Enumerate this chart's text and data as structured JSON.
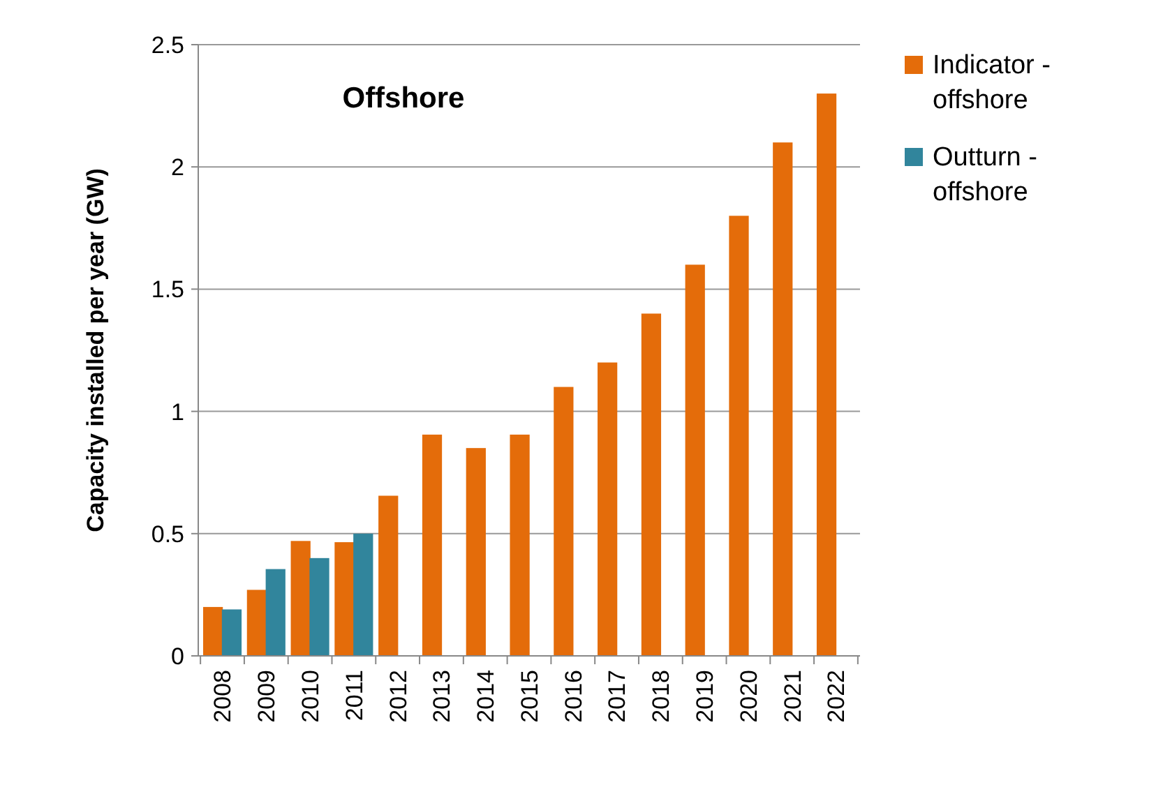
{
  "chart_data": {
    "type": "bar",
    "title": "Offshore",
    "ylabel": "Capacity installed per year (GW)",
    "categories": [
      "2008",
      "2009",
      "2010",
      "2011",
      "2012",
      "2013",
      "2014",
      "2015",
      "2016",
      "2017",
      "2018",
      "2019",
      "2020",
      "2021",
      "2022"
    ],
    "series": [
      {
        "name": "Indicator - offshore",
        "color": "#e46c0a",
        "values": [
          0.2,
          0.27,
          0.47,
          0.465,
          0.655,
          0.905,
          0.85,
          0.905,
          1.1,
          1.2,
          1.4,
          1.6,
          1.8,
          2.1,
          2.3
        ]
      },
      {
        "name": "Outturn - offshore",
        "color": "#31859c",
        "values": [
          0.19,
          0.355,
          0.4,
          0.5,
          null,
          null,
          null,
          null,
          null,
          null,
          null,
          null,
          null,
          null,
          null
        ]
      }
    ],
    "ylim": [
      0,
      2.5
    ],
    "yticks": [
      0,
      0.5,
      1,
      1.5,
      2,
      2.5
    ],
    "grid": "y",
    "legend": "right"
  }
}
